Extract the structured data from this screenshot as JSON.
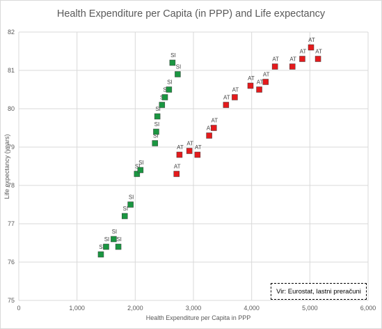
{
  "chart_data": {
    "type": "scatter",
    "title": "Health Expenditure per Capita (in PPP) and Life expectancy",
    "xlabel": "Health Expenditure per Capita in PPP",
    "ylabel": "Life expectancy  (years)",
    "xlim": [
      0,
      6000
    ],
    "ylim": [
      75,
      82
    ],
    "x_ticks": [
      0,
      1000,
      2000,
      3000,
      4000,
      5000,
      6000
    ],
    "x_tick_labels": [
      "0",
      "1,000",
      "2,000",
      "3,000",
      "4,000",
      "5,000",
      "6,000"
    ],
    "y_ticks": [
      75,
      76,
      77,
      78,
      79,
      80,
      81,
      82
    ],
    "y_tick_labels": [
      "75",
      "76",
      "77",
      "78",
      "79",
      "80",
      "81",
      "82"
    ],
    "grid": "vertical and horizontal major gridlines",
    "series": [
      {
        "label": "SI",
        "color": "#1a9641",
        "points": [
          {
            "x": 1410,
            "y": 76.2
          },
          {
            "x": 1500,
            "y": 76.4
          },
          {
            "x": 1630,
            "y": 76.6
          },
          {
            "x": 1710,
            "y": 76.4
          },
          {
            "x": 1820,
            "y": 77.2
          },
          {
            "x": 1920,
            "y": 77.5
          },
          {
            "x": 2030,
            "y": 78.3
          },
          {
            "x": 2090,
            "y": 78.4
          },
          {
            "x": 2340,
            "y": 79.1
          },
          {
            "x": 2360,
            "y": 79.4
          },
          {
            "x": 2380,
            "y": 79.8
          },
          {
            "x": 2460,
            "y": 80.1
          },
          {
            "x": 2510,
            "y": 80.3
          },
          {
            "x": 2580,
            "y": 80.5
          },
          {
            "x": 2640,
            "y": 81.2
          },
          {
            "x": 2730,
            "y": 80.9
          }
        ]
      },
      {
        "label": "AT",
        "color": "#e41a1c",
        "points": [
          {
            "x": 2710,
            "y": 78.3
          },
          {
            "x": 2760,
            "y": 78.8
          },
          {
            "x": 2930,
            "y": 78.9
          },
          {
            "x": 3070,
            "y": 78.8
          },
          {
            "x": 3270,
            "y": 79.3
          },
          {
            "x": 3350,
            "y": 79.5
          },
          {
            "x": 3560,
            "y": 80.1
          },
          {
            "x": 3710,
            "y": 80.3
          },
          {
            "x": 3980,
            "y": 80.6
          },
          {
            "x": 4130,
            "y": 80.5
          },
          {
            "x": 4240,
            "y": 80.7
          },
          {
            "x": 4400,
            "y": 81.1
          },
          {
            "x": 4700,
            "y": 81.1
          },
          {
            "x": 4870,
            "y": 81.3
          },
          {
            "x": 5020,
            "y": 81.6
          },
          {
            "x": 5140,
            "y": 81.3
          }
        ]
      }
    ],
    "annotation": "Vir: Eurostat, lastni preračuni"
  }
}
